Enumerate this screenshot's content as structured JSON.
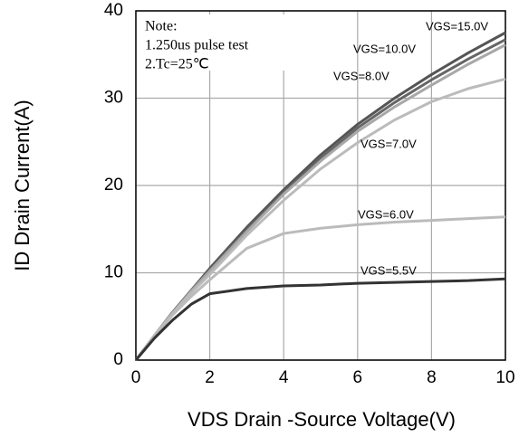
{
  "chart_data": {
    "type": "line",
    "xlabel": "VDS Drain -Source Voltage(V)",
    "ylabel": "ID Drain Current(A)",
    "annotations": [
      "Note:",
      "1.250us pulse test",
      "2.Tc=25℃"
    ],
    "x": [
      0,
      0.5,
      1,
      1.5,
      2,
      3,
      4,
      5,
      6,
      7,
      8,
      9,
      10
    ],
    "series": [
      {
        "name": "VGS=15.0V",
        "color": "#555555",
        "values": [
          0,
          2.8,
          5.5,
          8,
          10.5,
          15.2,
          19.5,
          23.5,
          27,
          30,
          32.7,
          35.2,
          37.5
        ]
      },
      {
        "name": "VGS=10.0V",
        "color": "#666666",
        "values": [
          0,
          2.8,
          5.5,
          8,
          10.3,
          14.9,
          19.2,
          23.1,
          26.6,
          29.5,
          32.1,
          34.5,
          36.7
        ]
      },
      {
        "name": "VGS=8.0V",
        "color": "#a8a8a8",
        "values": [
          0,
          2.8,
          5.4,
          7.9,
          10.2,
          14.7,
          19,
          22.8,
          26.2,
          29,
          31.5,
          33.9,
          36.1
        ]
      },
      {
        "name": "VGS=7.0V",
        "color": "#bbbbbb",
        "values": [
          0,
          2.8,
          5.4,
          7.7,
          9.8,
          14.3,
          18.3,
          21.9,
          24.9,
          27.5,
          29.6,
          31.1,
          32.2
        ]
      },
      {
        "name": "VGS=6.0V",
        "color": "#bbbbbb",
        "values": [
          0,
          2.7,
          5.2,
          7.3,
          9.2,
          12.8,
          14.5,
          15.1,
          15.5,
          15.8,
          16,
          16.2,
          16.4
        ]
      },
      {
        "name": "VGS=5.5V",
        "color": "#333333",
        "values": [
          0,
          2.5,
          4.6,
          6.4,
          7.6,
          8.2,
          8.5,
          8.6,
          8.8,
          8.9,
          9,
          9.1,
          9.3
        ]
      }
    ],
    "xlim": [
      0,
      10
    ],
    "xticks": [
      0,
      2,
      4,
      6,
      8,
      10
    ],
    "ylim": [
      0,
      40
    ],
    "yticks": [
      0,
      10,
      20,
      30,
      40
    ],
    "grid": true
  }
}
